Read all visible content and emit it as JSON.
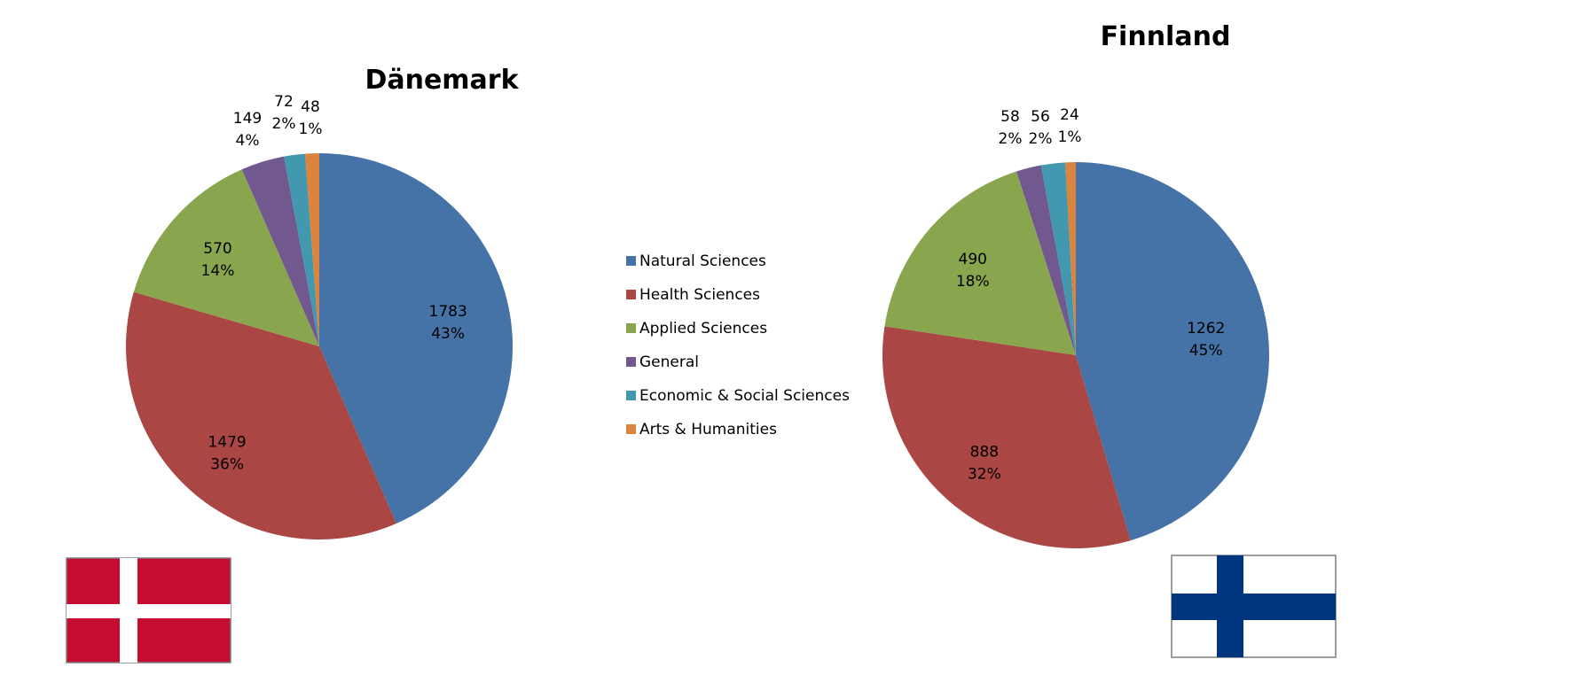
{
  "chart_data": [
    {
      "type": "pie",
      "title": "Dänemark",
      "flag": "denmark-flag",
      "categories": [
        "Natural Sciences",
        "Health Sciences",
        "Applied Sciences",
        "General",
        "Economic & Social Sciences",
        "Arts & Humanities"
      ],
      "values": [
        1783,
        1479,
        570,
        149,
        72,
        48
      ],
      "percent_labels": [
        "43%",
        "36%",
        "14%",
        "4%",
        "2%",
        "1%"
      ],
      "value_labels": [
        "1783",
        "1479",
        "570",
        "149",
        "72",
        "48"
      ]
    },
    {
      "type": "pie",
      "title": "Finnland",
      "flag": "finland-flag",
      "categories": [
        "Natural Sciences",
        "Health Sciences",
        "Applied Sciences",
        "General",
        "Economic & Social Sciences",
        "Arts & Humanities"
      ],
      "values": [
        1262,
        888,
        490,
        58,
        56,
        24
      ],
      "percent_labels": [
        "45%",
        "32%",
        "18%",
        "2%",
        "2%",
        "1%"
      ],
      "value_labels": [
        "1262",
        "888",
        "490",
        "58",
        "56",
        "24"
      ]
    }
  ],
  "legend": {
    "position": "center",
    "items": [
      "Natural Sciences",
      "Health Sciences",
      "Applied Sciences",
      "General",
      "Economic & Social Sciences",
      "Arts & Humanities"
    ]
  },
  "colors": [
    "#4572A7",
    "#AA4643",
    "#89A54E",
    "#71588F",
    "#4198AF",
    "#DB843D"
  ],
  "flag_colors": {
    "denmark_red": "#C60C30",
    "finland_blue": "#003580"
  }
}
